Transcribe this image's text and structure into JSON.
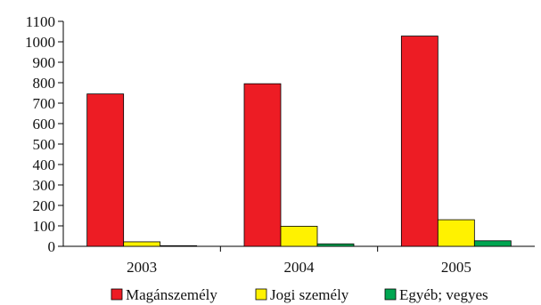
{
  "chart_data": {
    "type": "bar",
    "title": "",
    "xlabel": "",
    "ylabel": "",
    "categories": [
      "2003",
      "2004",
      "2005"
    ],
    "ylim": [
      0,
      1100
    ],
    "yticks": [
      0,
      100,
      200,
      300,
      400,
      500,
      600,
      700,
      800,
      900,
      1000,
      1100
    ],
    "grid": false,
    "legend_position": "bottom",
    "series": [
      {
        "name": "Magánszemély",
        "color": "#ED1C24",
        "values": [
          745,
          795,
          1028
        ]
      },
      {
        "name": "Jogi személy",
        "color": "#FFF200",
        "values": [
          22,
          98,
          130
        ]
      },
      {
        "name": "Egyéb; vegyes",
        "color": "#00A651",
        "values": [
          3,
          12,
          27
        ]
      }
    ]
  }
}
